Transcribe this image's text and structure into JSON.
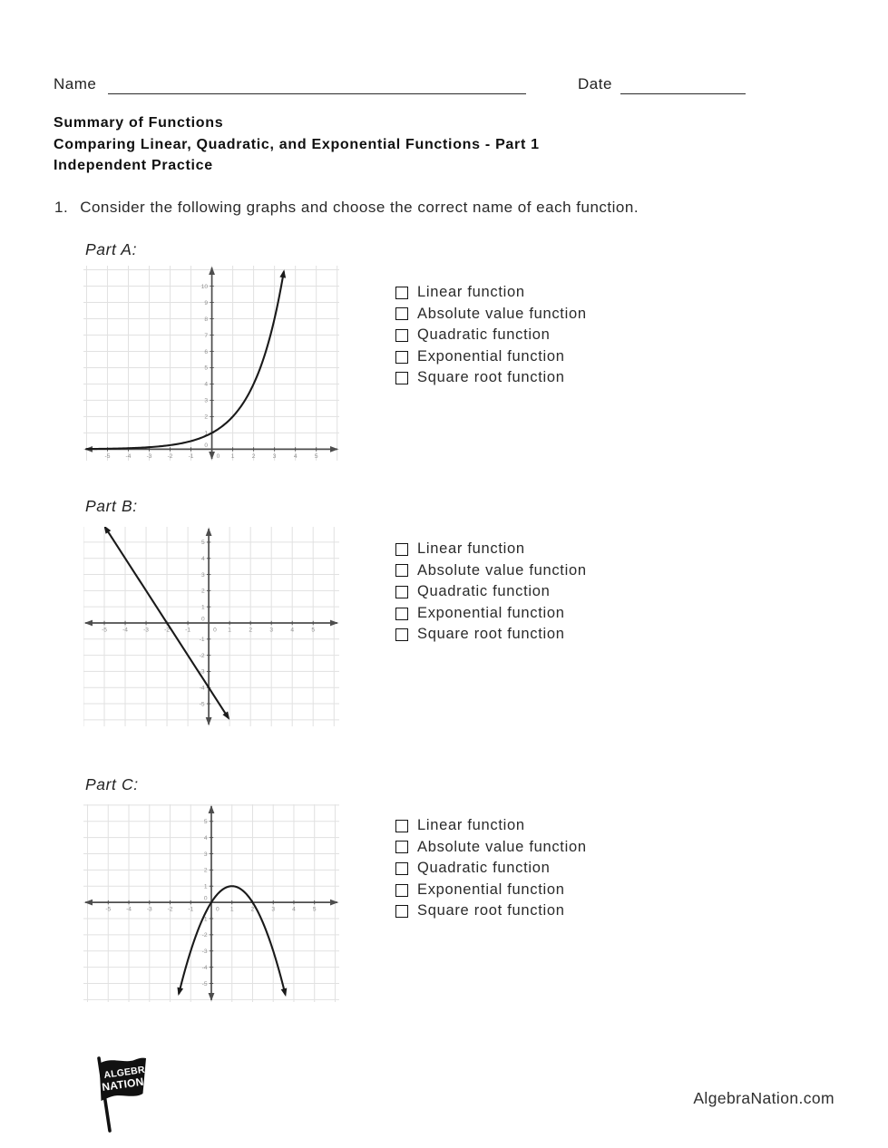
{
  "header": {
    "name_label": "Name",
    "date_label": "Date"
  },
  "title_block": {
    "line1": "Summary of Functions",
    "line2": "Comparing Linear, Quadratic, and Exponential Functions - Part 1",
    "line3": "Independent Practice"
  },
  "question": {
    "number": "1.",
    "text": "Consider the following graphs and choose the correct name of each function."
  },
  "options": [
    "Linear function",
    "Absolute value function",
    "Quadratic function",
    "Exponential function",
    "Square root function"
  ],
  "sections": [
    {
      "label": "Part A:"
    },
    {
      "label": "Part B:"
    },
    {
      "label": "Part C:"
    }
  ],
  "chart_data": [
    {
      "part": "A",
      "type": "line",
      "curve": "exponential",
      "equation": "y = 2^x",
      "params": {
        "base": 2
      },
      "x_range_drawn": [
        -6,
        3.44
      ],
      "xlim": [
        -6.15,
        6.1
      ],
      "ylim": [
        -0.7,
        11.25
      ],
      "x_ticks": [
        -5,
        -4,
        -3,
        -2,
        -1,
        0,
        1,
        2,
        3,
        4,
        5
      ],
      "y_ticks": [
        0,
        1,
        2,
        3,
        4,
        5,
        6,
        7,
        8,
        9,
        10
      ],
      "grid": true,
      "arrow_start": false,
      "arrow_end": true,
      "key_points": [
        [
          -1,
          0.5
        ],
        [
          0,
          1
        ],
        [
          1,
          2
        ],
        [
          2,
          4
        ],
        [
          3,
          8
        ]
      ]
    },
    {
      "part": "B",
      "type": "line",
      "curve": "linear",
      "equation": "y = -2x - 4",
      "params": {
        "slope": -2,
        "intercept": -4
      },
      "x_range_drawn": [
        -4.95,
        0.93
      ],
      "xlim": [
        -6.0,
        6.25
      ],
      "ylim": [
        -6.4,
        5.95
      ],
      "x_ticks": [
        -5,
        -4,
        -3,
        -2,
        -1,
        0,
        1,
        2,
        3,
        4,
        5
      ],
      "y_ticks": [
        -5,
        -4,
        -3,
        -2,
        -1,
        0,
        1,
        2,
        3,
        4,
        5
      ],
      "grid": true,
      "arrow_start": true,
      "arrow_end": true,
      "key_points": [
        [
          -2,
          0
        ],
        [
          0,
          -4
        ]
      ]
    },
    {
      "part": "C",
      "type": "line",
      "curve": "quadratic",
      "equation": "y = -(x - 1)^2 + 1",
      "params": {
        "a": -1,
        "h": 1,
        "k": 1
      },
      "x_range_drawn": [
        -1.57,
        3.58
      ],
      "xlim": [
        -6.2,
        6.2
      ],
      "ylim": [
        -6.15,
        6.05
      ],
      "x_ticks": [
        -5,
        -4,
        -3,
        -2,
        -1,
        0,
        1,
        2,
        3,
        4,
        5
      ],
      "y_ticks": [
        -5,
        -4,
        -3,
        -2,
        -1,
        0,
        1,
        2,
        3,
        4,
        5
      ],
      "grid": true,
      "arrow_start": true,
      "arrow_end": true,
      "vertex": [
        1,
        1
      ],
      "key_points": [
        [
          0,
          0
        ],
        [
          1,
          1
        ],
        [
          2,
          0
        ]
      ]
    }
  ],
  "footer": {
    "logo_line1": "ALGEBRA",
    "logo_line2": "NATION",
    "site": "AlgebraNation.com"
  },
  "colors": {
    "text": "#1a1a1a",
    "grid": "#e1e1e1",
    "axis": "#4d4d4d",
    "tick_label": "#8f8f8f",
    "curve": "#1a1a1a"
  }
}
